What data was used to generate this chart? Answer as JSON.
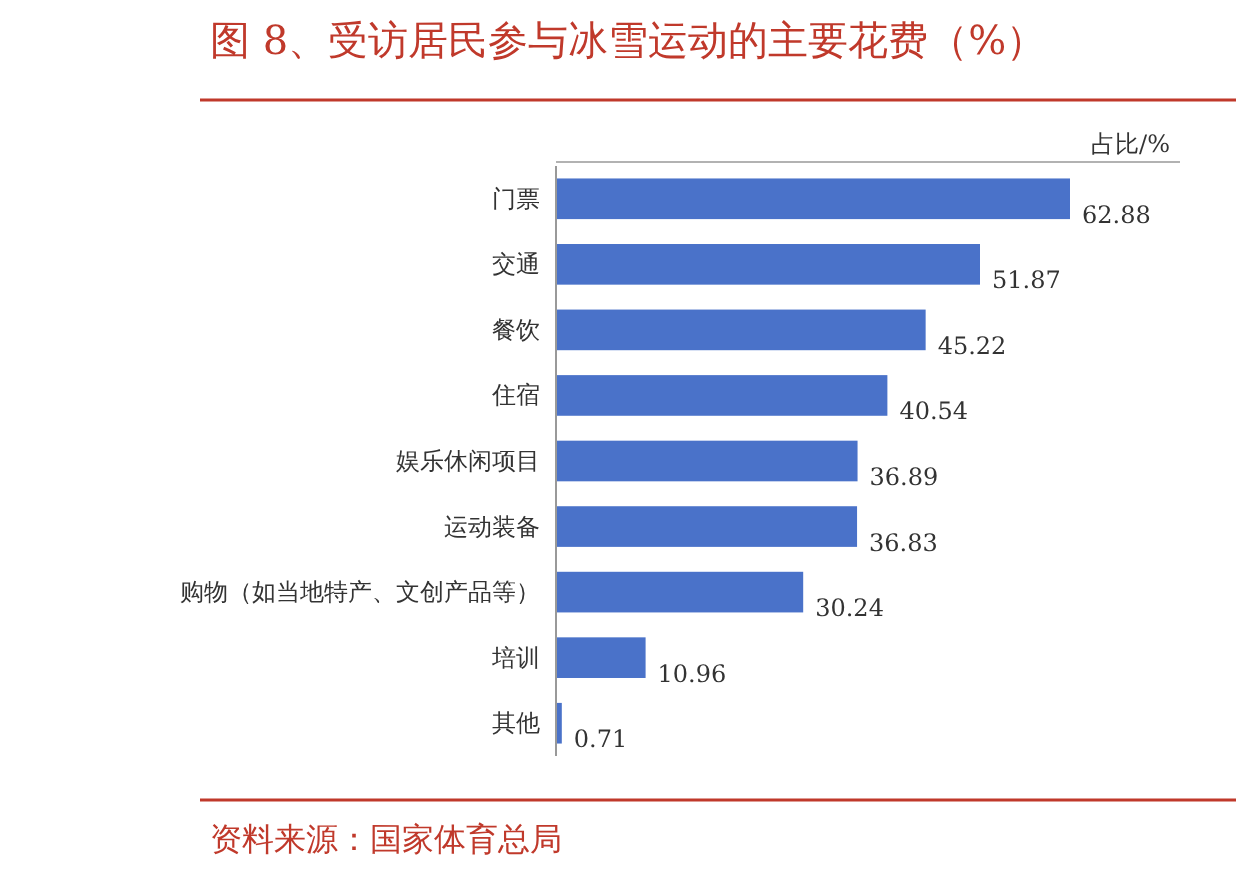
{
  "chart_data": {
    "type": "bar",
    "orientation": "horizontal",
    "title": "图 8、受访居民参与冰雪运动的主要花费（%）",
    "xlabel": "占比/%",
    "categories": [
      "门票",
      "交通",
      "餐饮",
      "住宿",
      "娱乐休闲项目",
      "运动装备",
      "购物（如当地特产、文创产品等）",
      "培训",
      "其他"
    ],
    "values": [
      62.88,
      51.87,
      45.22,
      40.54,
      36.89,
      36.83,
      30.24,
      10.96,
      0.71
    ],
    "color": "#4a72c9",
    "data_labels": true,
    "annotations": [
      "资料来源：国家体育总局"
    ]
  }
}
